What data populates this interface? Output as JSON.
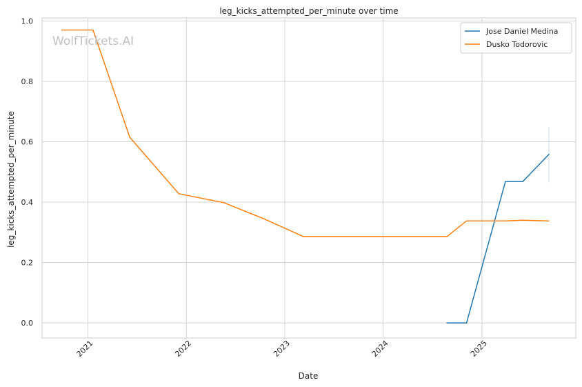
{
  "chart_data": {
    "type": "line",
    "title": "leg_kicks_attempted_per_minute over time",
    "xlabel": "Date",
    "ylabel": "leg_kicks_attempted_per_minute",
    "watermark": "WolfTickets.AI",
    "grid": true,
    "legend_position": "top-right",
    "xlim": [
      "2020-07-15",
      "2025-12-15"
    ],
    "ylim": [
      -0.05,
      1.01
    ],
    "x_ticks": [
      "2021-01-01",
      "2022-01-01",
      "2023-01-01",
      "2024-01-01",
      "2025-01-01"
    ],
    "x_tick_labels": [
      "2021",
      "2022",
      "2023",
      "2024",
      "2025"
    ],
    "y_ticks": [
      0.0,
      0.2,
      0.4,
      0.6,
      0.8,
      1.0
    ],
    "y_tick_labels": [
      "0.0",
      "0.2",
      "0.4",
      "0.6",
      "0.8",
      "1.0"
    ],
    "colors": {
      "series_1": "#1f77b4",
      "series_2": "#ff7f0e",
      "grid": "#d4d4d4",
      "spine": "#cccccc"
    },
    "series": [
      {
        "name": "Jose Daniel Medina",
        "color": "#1f77b4",
        "points": [
          {
            "x": "2024-08-24",
            "y": 0.0
          },
          {
            "x": "2024-11-05",
            "y": 0.0
          },
          {
            "x": "2025-03-29",
            "y": 0.468
          },
          {
            "x": "2025-06-01",
            "y": 0.468
          },
          {
            "x": "2025-09-06",
            "y": 0.558
          }
        ],
        "error_bar": {
          "x": "2025-09-06",
          "low": 0.465,
          "high": 0.65
        }
      },
      {
        "name": "Dusko Todorovic",
        "color": "#ff7f0e",
        "points": [
          {
            "x": "2020-09-26",
            "y": 0.97
          },
          {
            "x": "2021-01-20",
            "y": 0.97
          },
          {
            "x": "2021-06-05",
            "y": 0.615
          },
          {
            "x": "2021-12-04",
            "y": 0.428
          },
          {
            "x": "2022-05-21",
            "y": 0.398
          },
          {
            "x": "2022-10-15",
            "y": 0.345
          },
          {
            "x": "2023-03-11",
            "y": 0.286
          },
          {
            "x": "2024-08-24",
            "y": 0.286
          },
          {
            "x": "2024-11-05",
            "y": 0.338
          },
          {
            "x": "2025-03-29",
            "y": 0.338
          },
          {
            "x": "2025-06-01",
            "y": 0.34
          },
          {
            "x": "2025-09-06",
            "y": 0.338
          }
        ]
      }
    ]
  }
}
